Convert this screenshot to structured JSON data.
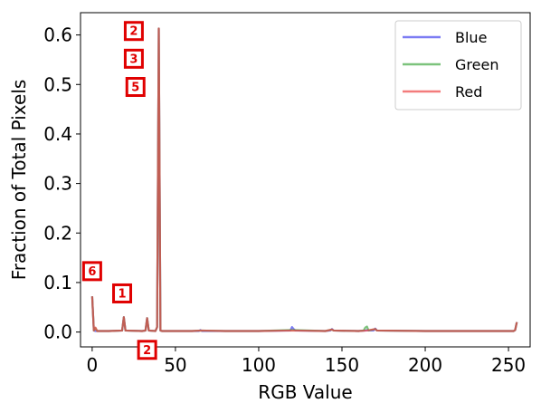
{
  "chart_data": {
    "type": "line",
    "title": "",
    "xlabel": "RGB Value",
    "ylabel": "Fraction of Total Pixels",
    "xlim": [
      -7,
      263
    ],
    "ylim": [
      -0.03,
      0.645
    ],
    "xticks": [
      0,
      50,
      100,
      150,
      200,
      250
    ],
    "xtick_labels": [
      "0",
      "50",
      "100",
      "150",
      "200",
      "250"
    ],
    "yticks": [
      0.0,
      0.1,
      0.2,
      0.3,
      0.4,
      0.5,
      0.6
    ],
    "ytick_labels": [
      "0.0",
      "0.1",
      "0.2",
      "0.3",
      "0.4",
      "0.5",
      "0.6"
    ],
    "grid": false,
    "legend_position": "top-right",
    "series": [
      {
        "name": "Blue",
        "color": "#4444ee",
        "points": [
          [
            0,
            0.072
          ],
          [
            1,
            0.003
          ],
          [
            2,
            0.002
          ],
          [
            10,
            0.002
          ],
          [
            18,
            0.003
          ],
          [
            19,
            0.03
          ],
          [
            20,
            0.003
          ],
          [
            30,
            0.002
          ],
          [
            32,
            0.003
          ],
          [
            33,
            0.028
          ],
          [
            34,
            0.003
          ],
          [
            38,
            0.002
          ],
          [
            39,
            0.01
          ],
          [
            40,
            0.613
          ],
          [
            41,
            0.003
          ],
          [
            42,
            0.002
          ],
          [
            60,
            0.002
          ],
          [
            64,
            0.002
          ],
          [
            65,
            0.004
          ],
          [
            66,
            0.002
          ],
          [
            80,
            0.002
          ],
          [
            100,
            0.002
          ],
          [
            119,
            0.003
          ],
          [
            120,
            0.01
          ],
          [
            121,
            0.006
          ],
          [
            122,
            0.003
          ],
          [
            140,
            0.002
          ],
          [
            143,
            0.003
          ],
          [
            144,
            0.006
          ],
          [
            145,
            0.003
          ],
          [
            160,
            0.002
          ],
          [
            164,
            0.003
          ],
          [
            165,
            0.004
          ],
          [
            166,
            0.003
          ],
          [
            169,
            0.003
          ],
          [
            170,
            0.007
          ],
          [
            171,
            0.003
          ],
          [
            200,
            0.002
          ],
          [
            230,
            0.002
          ],
          [
            253,
            0.002
          ],
          [
            254,
            0.004
          ],
          [
            255,
            0.02
          ]
        ]
      },
      {
        "name": "Green",
        "color": "#44aa44",
        "points": [
          [
            0,
            0.072
          ],
          [
            1,
            0.003
          ],
          [
            2,
            0.008
          ],
          [
            3,
            0.002
          ],
          [
            10,
            0.002
          ],
          [
            18,
            0.003
          ],
          [
            19,
            0.03
          ],
          [
            20,
            0.003
          ],
          [
            30,
            0.002
          ],
          [
            32,
            0.003
          ],
          [
            33,
            0.028
          ],
          [
            34,
            0.003
          ],
          [
            38,
            0.002
          ],
          [
            39,
            0.01
          ],
          [
            40,
            0.613
          ],
          [
            41,
            0.003
          ],
          [
            42,
            0.002
          ],
          [
            60,
            0.002
          ],
          [
            65,
            0.003
          ],
          [
            80,
            0.002
          ],
          [
            100,
            0.002
          ],
          [
            120,
            0.004
          ],
          [
            140,
            0.002
          ],
          [
            144,
            0.005
          ],
          [
            145,
            0.003
          ],
          [
            160,
            0.002
          ],
          [
            163,
            0.003
          ],
          [
            164,
            0.009
          ],
          [
            165,
            0.011
          ],
          [
            166,
            0.003
          ],
          [
            170,
            0.006
          ],
          [
            171,
            0.003
          ],
          [
            200,
            0.002
          ],
          [
            230,
            0.002
          ],
          [
            253,
            0.002
          ],
          [
            254,
            0.004
          ],
          [
            255,
            0.02
          ]
        ]
      },
      {
        "name": "Red",
        "color": "#ee4444",
        "points": [
          [
            0,
            0.072
          ],
          [
            1,
            0.003
          ],
          [
            2,
            0.009
          ],
          [
            3,
            0.002
          ],
          [
            10,
            0.002
          ],
          [
            18,
            0.003
          ],
          [
            19,
            0.03
          ],
          [
            20,
            0.003
          ],
          [
            30,
            0.002
          ],
          [
            32,
            0.003
          ],
          [
            33,
            0.028
          ],
          [
            34,
            0.003
          ],
          [
            38,
            0.002
          ],
          [
            39,
            0.01
          ],
          [
            40,
            0.613
          ],
          [
            41,
            0.003
          ],
          [
            42,
            0.002
          ],
          [
            60,
            0.002
          ],
          [
            65,
            0.003
          ],
          [
            80,
            0.002
          ],
          [
            100,
            0.002
          ],
          [
            120,
            0.003
          ],
          [
            140,
            0.002
          ],
          [
            144,
            0.005
          ],
          [
            145,
            0.003
          ],
          [
            160,
            0.002
          ],
          [
            165,
            0.003
          ],
          [
            170,
            0.006
          ],
          [
            171,
            0.003
          ],
          [
            200,
            0.002
          ],
          [
            230,
            0.002
          ],
          [
            253,
            0.002
          ],
          [
            254,
            0.004
          ],
          [
            255,
            0.02
          ]
        ]
      }
    ],
    "annotations": [
      {
        "label": "2",
        "x": 25,
        "y": 0.608
      },
      {
        "label": "3",
        "x": 25,
        "y": 0.552
      },
      {
        "label": "5",
        "x": 26,
        "y": 0.495
      },
      {
        "label": "6",
        "x": 0,
        "y": 0.123
      },
      {
        "label": "1",
        "x": 18,
        "y": 0.078
      },
      {
        "label": "2",
        "x": 33,
        "y": -0.036
      }
    ]
  }
}
